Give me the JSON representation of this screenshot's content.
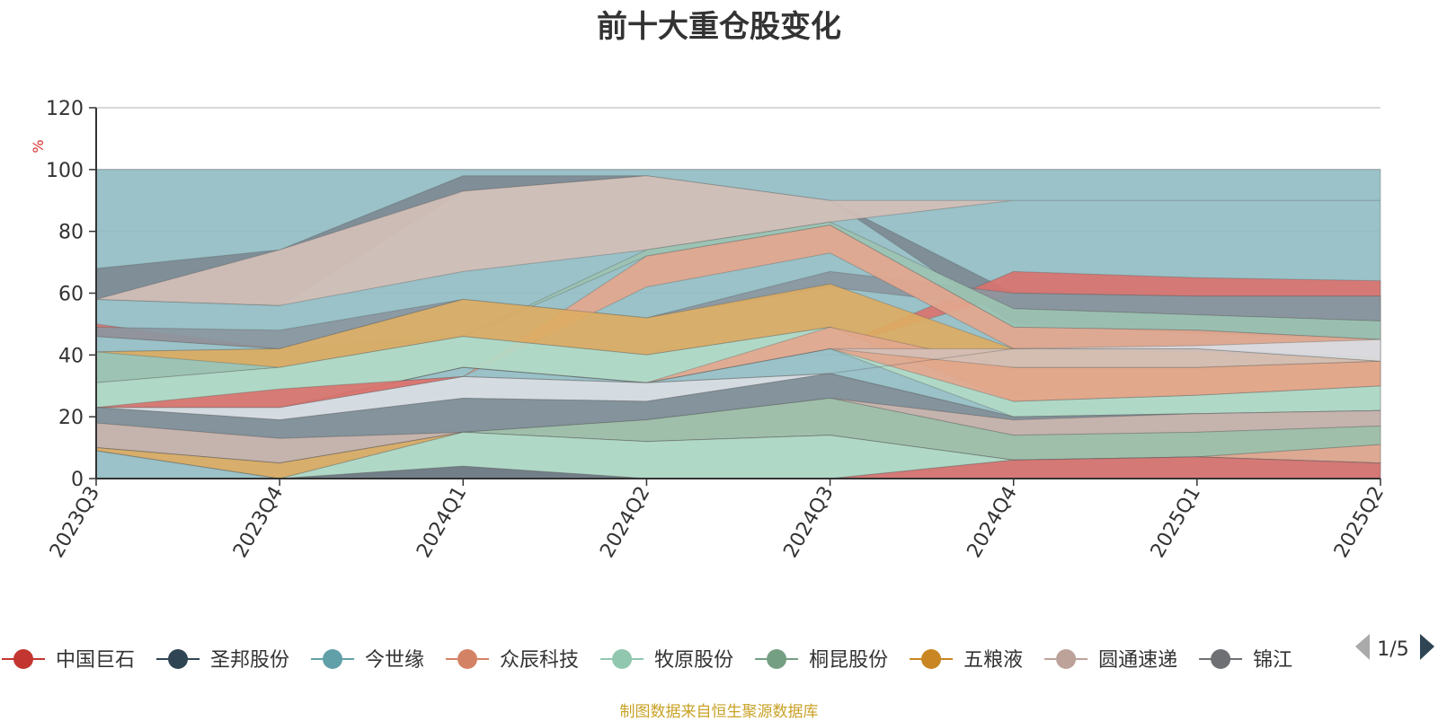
{
  "title": "前十大重仓股变化",
  "source": "制图数据来自恒生聚源数据库",
  "chart_data": {
    "type": "area",
    "stacked": false,
    "title": "前十大重仓股变化",
    "ylabel": "%",
    "ylim": [
      0,
      120
    ],
    "yticks": [
      0,
      20,
      40,
      60,
      80,
      100,
      120
    ],
    "grid": true,
    "categories": [
      "2023Q3",
      "2023Q4",
      "2024Q1",
      "2024Q2",
      "2024Q3",
      "2024Q4",
      "2025Q1",
      "2025Q2"
    ],
    "bands": [
      {
        "color": "#91bdc3",
        "upper": [
          100,
          100,
          100,
          100,
          100,
          100,
          100,
          100
        ],
        "lower": [
          0,
          0,
          0,
          0,
          0,
          0,
          0,
          0
        ]
      },
      {
        "color": "#7d8a93",
        "upper": [
          68,
          74,
          98,
          98,
          90,
          60,
          59,
          59
        ],
        "lower": [
          58,
          56,
          93,
          98,
          90,
          50,
          47,
          45
        ]
      },
      {
        "color": "#d4bfb7",
        "upper": [
          58,
          74,
          93,
          98,
          90,
          90,
          90,
          90
        ],
        "lower": [
          58,
          56,
          67,
          74,
          83,
          90,
          90,
          90
        ]
      },
      {
        "color": "#d9736f",
        "upper": [
          50,
          42,
          42,
          42,
          42,
          67,
          65,
          64
        ],
        "lower": [
          46,
          42,
          42,
          42,
          42,
          60,
          59,
          59
        ]
      },
      {
        "color": "#8b979f",
        "upper": [
          49,
          48,
          58,
          52,
          67,
          60,
          59,
          59
        ],
        "lower": [
          46,
          42,
          58,
          52,
          62,
          55,
          53,
          51
        ]
      },
      {
        "color": "#9cc3b2",
        "upper": [
          41,
          42,
          46,
          74,
          83,
          55,
          53,
          51
        ],
        "lower": [
          31,
          36,
          46,
          72,
          82,
          49,
          48,
          45
        ]
      },
      {
        "color": "#e3a78e",
        "upper": [
          23,
          29,
          33,
          72,
          82,
          49,
          48,
          45
        ],
        "lower": [
          23,
          23,
          33,
          62,
          73,
          42,
          42,
          39
        ]
      },
      {
        "color": "#dcad63",
        "upper": [
          41,
          42,
          58,
          52,
          63,
          42,
          41,
          39
        ],
        "lower": [
          41,
          36,
          46,
          40,
          49,
          25,
          27,
          30
        ]
      },
      {
        "color": "#b2dac6",
        "upper": [
          31,
          36,
          46,
          40,
          49,
          25,
          27,
          30
        ],
        "lower": [
          23,
          23,
          36,
          31,
          42,
          20,
          21,
          22
        ]
      },
      {
        "color": "#e3a78e",
        "upper": [
          23,
          23,
          36,
          31,
          49,
          36,
          36,
          38
        ],
        "lower": [
          23,
          23,
          36,
          31,
          42,
          25,
          27,
          30
        ]
      },
      {
        "color": "#d4bfb7",
        "upper": [
          23,
          23,
          36,
          31,
          42,
          42,
          42,
          38
        ],
        "lower": [
          23,
          23,
          36,
          31,
          42,
          36,
          36,
          38
        ]
      },
      {
        "color": "#d9dde3",
        "upper": [
          23,
          23,
          33,
          31,
          34,
          42,
          43,
          45
        ],
        "lower": [
          23,
          19,
          26,
          25,
          34,
          42,
          42,
          38
        ]
      },
      {
        "color": "#d9736f",
        "upper": [
          23,
          29,
          33,
          31,
          34,
          20,
          21,
          22
        ],
        "lower": [
          23,
          23,
          33,
          31,
          34,
          20,
          21,
          22
        ]
      },
      {
        "color": "#828f98",
        "upper": [
          23,
          19,
          26,
          25,
          34,
          20,
          21,
          22
        ],
        "lower": [
          18,
          13,
          15,
          19,
          26,
          19,
          21,
          22
        ]
      },
      {
        "color": "#c9b2aa",
        "upper": [
          18,
          13,
          15,
          19,
          26,
          19,
          21,
          22
        ],
        "lower": [
          10,
          5,
          15,
          19,
          26,
          14,
          15,
          17
        ]
      },
      {
        "color": "#9fbfa7",
        "upper": [
          10,
          5,
          15,
          19,
          26,
          14,
          15,
          17
        ],
        "lower": [
          10,
          5,
          15,
          12,
          14,
          6,
          7,
          11
        ]
      },
      {
        "color": "#e3a78e",
        "upper": [
          10,
          5,
          15,
          12,
          14,
          6,
          7,
          11
        ],
        "lower": [
          10,
          5,
          15,
          12,
          14,
          6,
          7,
          5
        ]
      },
      {
        "color": "#dcad63",
        "upper": [
          10,
          5,
          15,
          12,
          14,
          6,
          7,
          5
        ],
        "lower": [
          9,
          0,
          15,
          12,
          14,
          6,
          7,
          5
        ]
      },
      {
        "color": "#b2dac6",
        "upper": [
          9,
          0,
          15,
          12,
          14,
          6,
          7,
          5
        ],
        "lower": [
          9,
          0,
          4,
          0,
          0,
          6,
          7,
          5
        ]
      },
      {
        "color": "#6f7a83",
        "upper": [
          0,
          0,
          4,
          0,
          0,
          0,
          0,
          0
        ],
        "lower": [
          0,
          0,
          0,
          0,
          0,
          0,
          0,
          0
        ]
      },
      {
        "color": "#d9736f",
        "upper": [
          0,
          0,
          0,
          0,
          0,
          6,
          7,
          5
        ],
        "lower": [
          0,
          0,
          0,
          0,
          0,
          0,
          0,
          0
        ]
      }
    ],
    "legend": {
      "position": "bottom",
      "items": [
        {
          "name": "中国巨石",
          "color": "#c23531"
        },
        {
          "name": "圣邦股份",
          "color": "#2f4554"
        },
        {
          "name": "今世缘",
          "color": "#61a0a8"
        },
        {
          "name": "众辰科技",
          "color": "#d48265"
        },
        {
          "name": "牧原股份",
          "color": "#91c7ae"
        },
        {
          "name": "桐昆股份",
          "color": "#749f83"
        },
        {
          "name": "五粮液",
          "color": "#ca8622"
        },
        {
          "name": "圆通速递",
          "color": "#bda29a"
        },
        {
          "name": "锦江",
          "color": "#6e7074"
        }
      ],
      "page": "1/5"
    }
  }
}
